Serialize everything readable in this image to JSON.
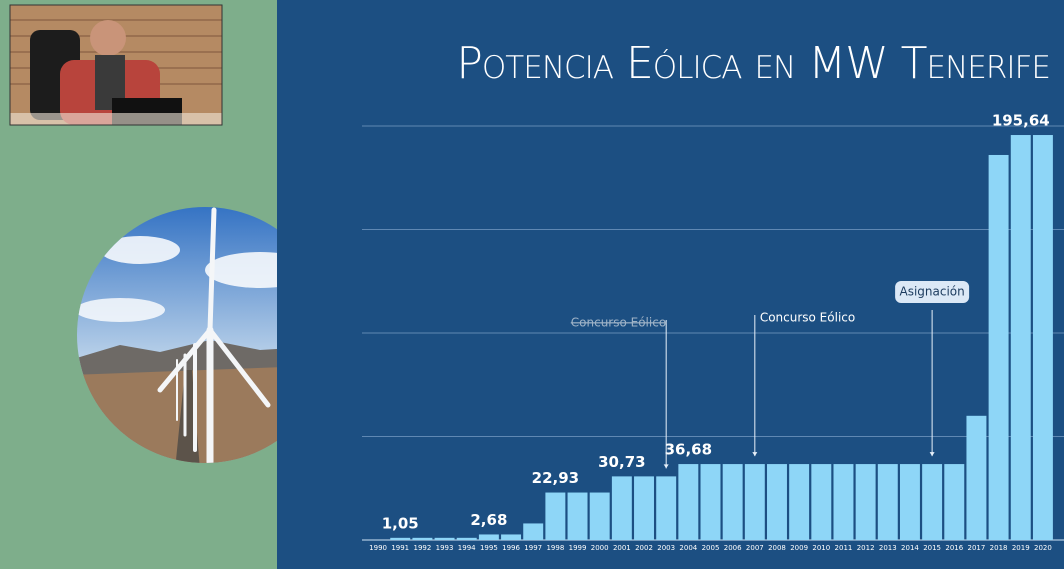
{
  "chart_data": {
    "type": "bar",
    "title": "Potencia Eólica en MW Tenerife",
    "categories": [
      "1990",
      "1991",
      "1992",
      "1993",
      "1994",
      "1995",
      "1996",
      "1997",
      "1998",
      "1999",
      "2000",
      "2001",
      "2002",
      "2003",
      "2004",
      "2005",
      "2006",
      "2007",
      "2008",
      "2009",
      "2010",
      "2011",
      "2012",
      "2013",
      "2014",
      "2015",
      "2016",
      "2017",
      "2018",
      "2019",
      "2020"
    ],
    "values": [
      0,
      1.05,
      1.05,
      1.05,
      1.05,
      2.68,
      2.68,
      8,
      22.93,
      22.93,
      22.93,
      30.73,
      30.73,
      30.73,
      36.68,
      36.68,
      36.68,
      36.68,
      36.68,
      36.68,
      36.68,
      36.68,
      36.68,
      36.68,
      36.68,
      36.68,
      36.68,
      60,
      186,
      195.64,
      195.64
    ],
    "value_labels": [
      null,
      "1,05",
      null,
      null,
      null,
      "2,68",
      null,
      null,
      "22,93",
      null,
      null,
      "30,73",
      null,
      null,
      "36,68",
      null,
      null,
      null,
      null,
      null,
      null,
      null,
      null,
      null,
      null,
      null,
      null,
      null,
      null,
      "195,64",
      null
    ],
    "color": "#8ed6f7",
    "ylim": [
      0,
      200
    ],
    "ygrid": [
      50,
      100,
      150,
      200
    ],
    "annotations": [
      {
        "text": "Concurso Eólico",
        "at": "2003",
        "struck": true
      },
      {
        "text": "Concurso Eólico",
        "at": "2007"
      },
      {
        "text": "Asignación",
        "at": "2015",
        "boxed": true
      }
    ]
  }
}
